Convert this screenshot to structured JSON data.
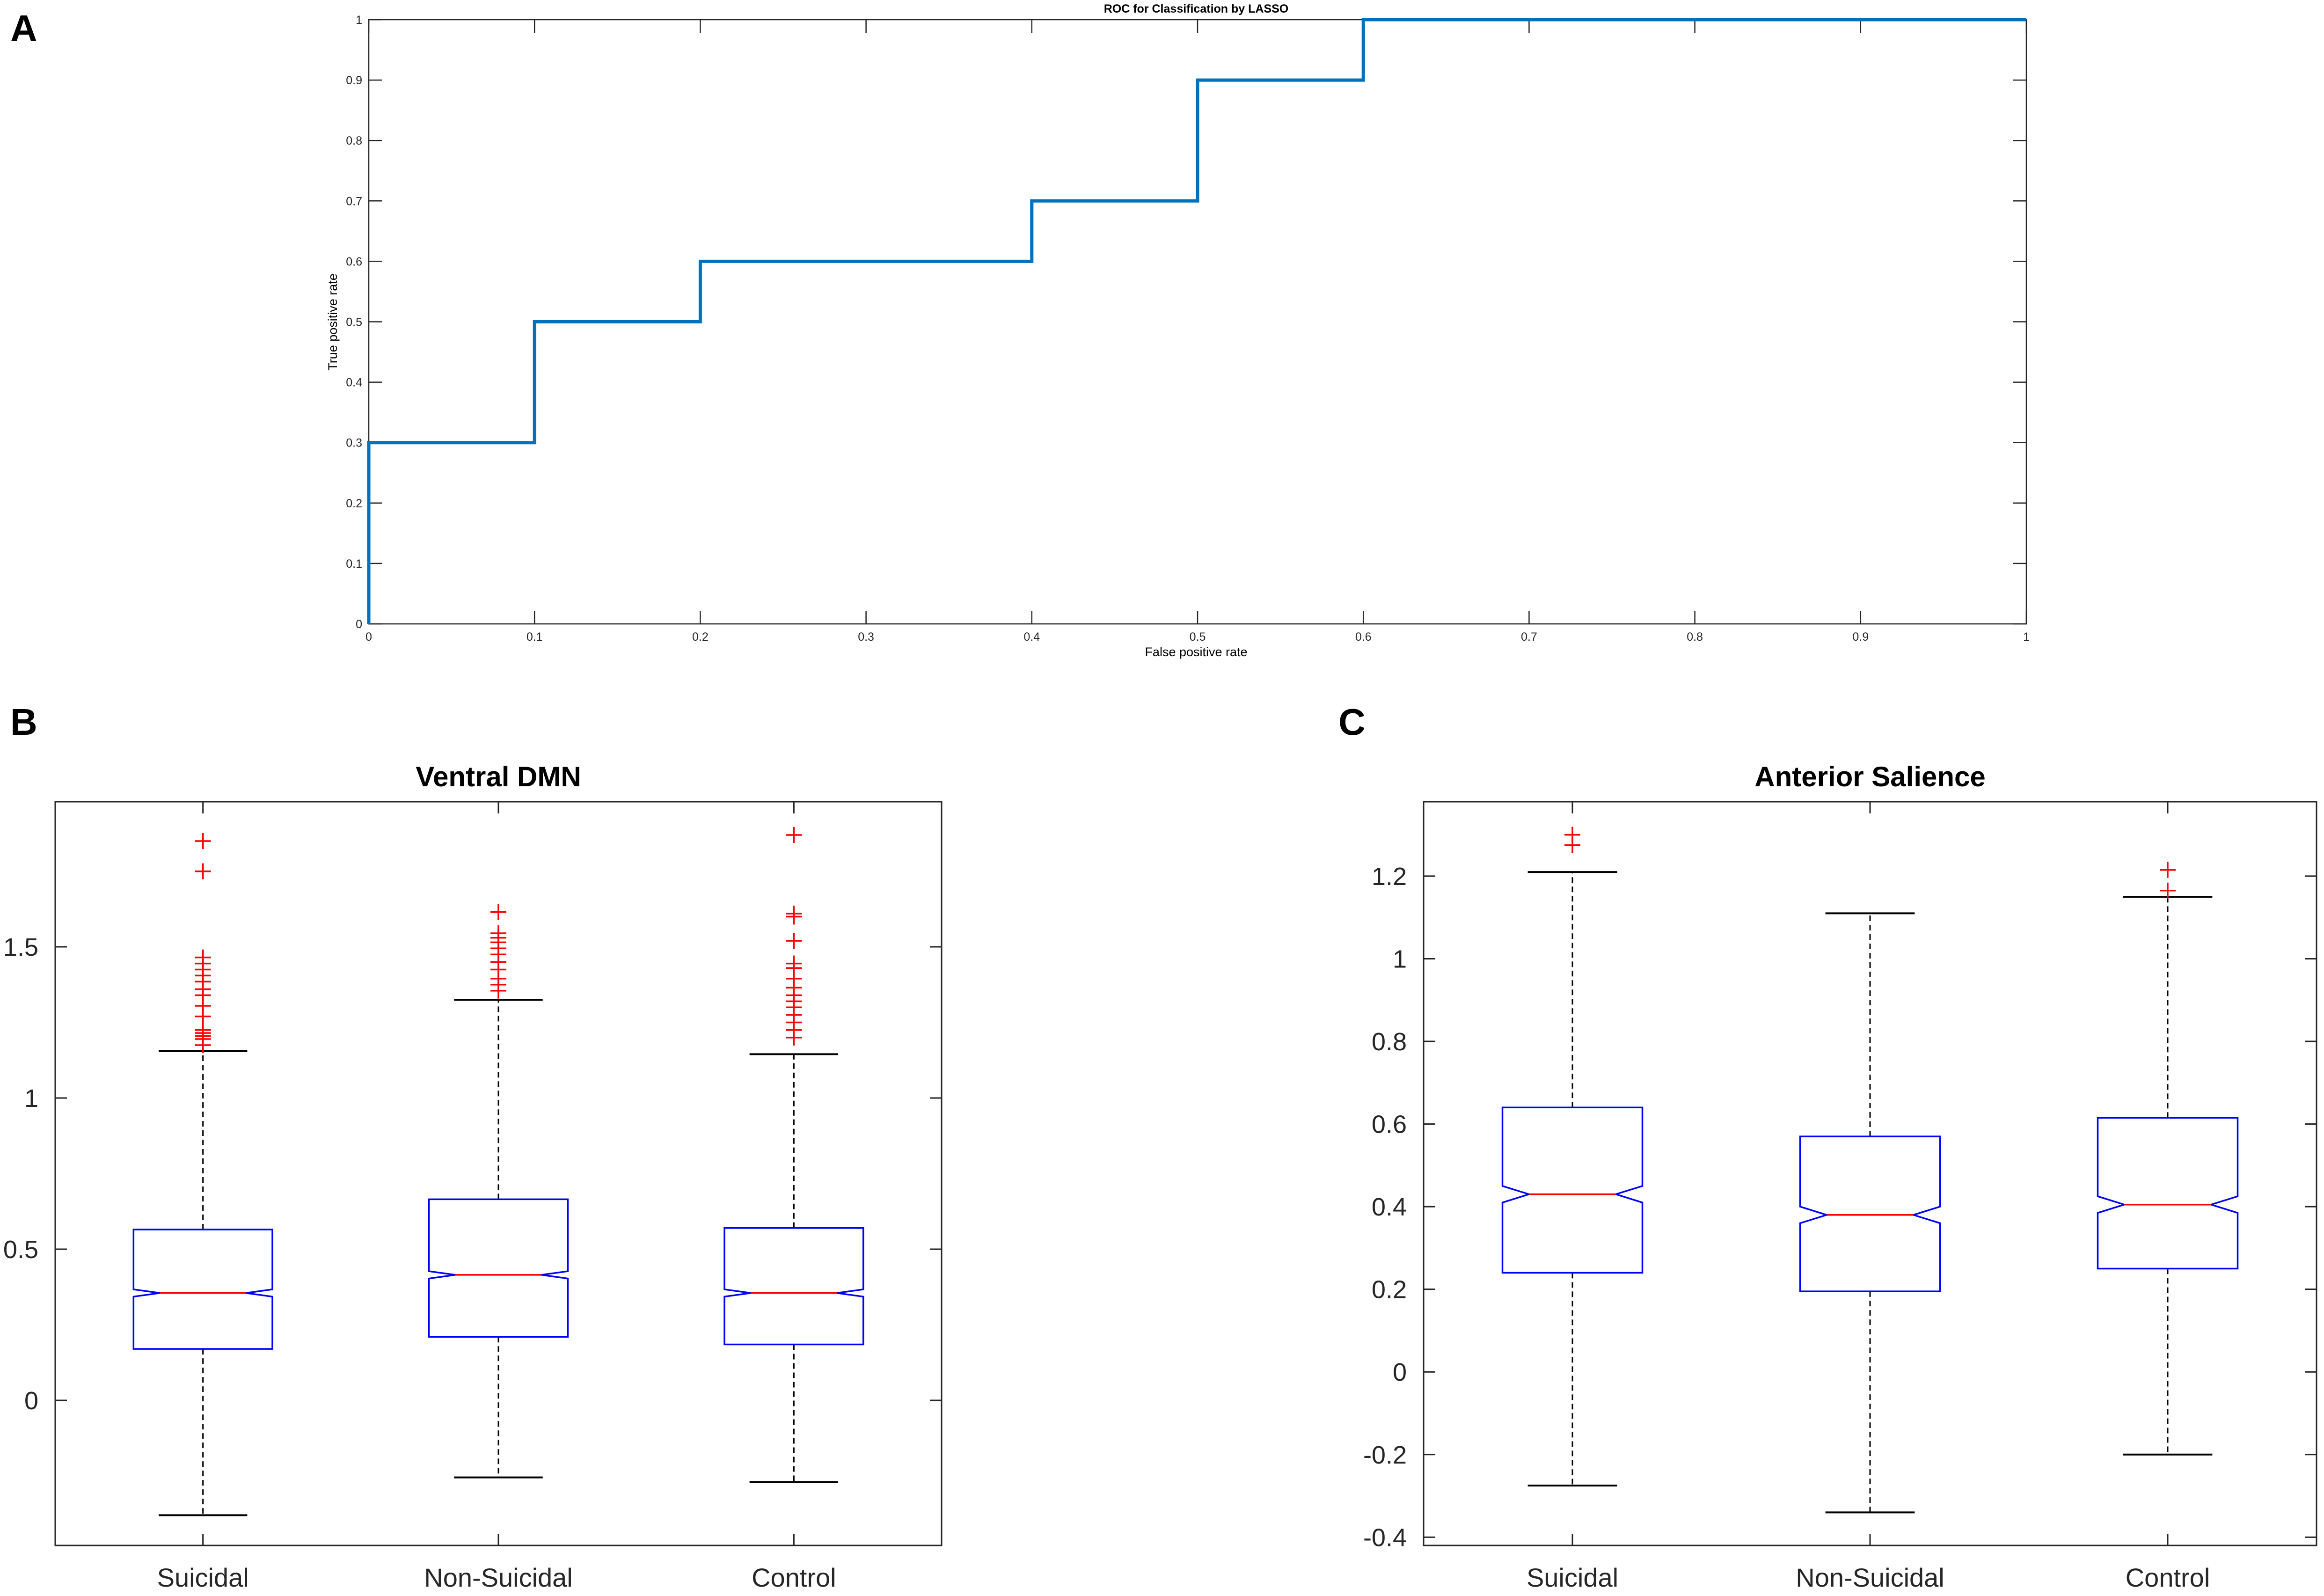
{
  "panels": {
    "a": {
      "letter": "A"
    },
    "b": {
      "letter": "B"
    },
    "c": {
      "letter": "C"
    }
  },
  "chart_data": [
    {
      "type": "line",
      "title": "ROC for Classification by LASSO",
      "xlabel": "False positive rate",
      "ylabel": "True positive rate",
      "xlim": [
        0,
        1
      ],
      "ylim": [
        0,
        1
      ],
      "xticks": [
        0,
        0.1,
        0.2,
        0.3,
        0.4,
        0.5,
        0.6,
        0.7,
        0.8,
        0.9,
        1
      ],
      "yticks": [
        0,
        0.1,
        0.2,
        0.3,
        0.4,
        0.5,
        0.6,
        0.7,
        0.8,
        0.9,
        1
      ],
      "xtick_labels": [
        "0",
        "0.1",
        "0.2",
        "0.3",
        "0.4",
        "0.5",
        "0.6",
        "0.7",
        "0.8",
        "0.9",
        "1"
      ],
      "ytick_labels": [
        "0",
        "0.1",
        "0.2",
        "0.3",
        "0.4",
        "0.5",
        "0.6",
        "0.7",
        "0.8",
        "0.9",
        "1"
      ],
      "grid": false,
      "series": [
        {
          "name": "ROC",
          "color": "#0072bd",
          "step": true,
          "x": [
            0,
            0,
            0.1,
            0.1,
            0.2,
            0.2,
            0.4,
            0.4,
            0.5,
            0.5,
            0.6,
            0.6,
            1
          ],
          "y": [
            0,
            0.3,
            0.3,
            0.5,
            0.5,
            0.6,
            0.6,
            0.7,
            0.7,
            0.9,
            0.9,
            1,
            1
          ]
        }
      ]
    },
    {
      "type": "box",
      "title": "Ventral DMN",
      "xlabel": "",
      "ylabel": "",
      "ylim": [
        -0.48,
        1.98
      ],
      "yticks": [
        0,
        0.5,
        1,
        1.5
      ],
      "ytick_labels": [
        "0",
        "0.5",
        "1",
        "1.5"
      ],
      "categories": [
        "Suicidal",
        "Non-Suicidal",
        "Control"
      ],
      "box_color": "#0000ff",
      "median_color": "#ff0000",
      "whisker_color": "#000000",
      "outlier_color": "#ff0000",
      "boxes": [
        {
          "q1": 0.17,
          "median": 0.355,
          "q3": 0.565,
          "notch_low": 0.343,
          "notch_high": 0.367,
          "whisker_low": -0.38,
          "whisker_high": 1.155,
          "outliers": [
            1.85,
            1.75,
            1.465,
            1.445,
            1.425,
            1.405,
            1.385,
            1.36,
            1.34,
            1.305,
            1.27,
            1.225,
            1.215,
            1.205,
            1.195,
            1.175
          ]
        },
        {
          "q1": 0.21,
          "median": 0.415,
          "q3": 0.665,
          "notch_low": 0.403,
          "notch_high": 0.427,
          "whisker_low": -0.255,
          "whisker_high": 1.325,
          "outliers": [
            1.615,
            1.545,
            1.53,
            1.515,
            1.495,
            1.475,
            1.45,
            1.425,
            1.395,
            1.375,
            1.355
          ]
        },
        {
          "q1": 0.185,
          "median": 0.355,
          "q3": 0.57,
          "notch_low": 0.343,
          "notch_high": 0.367,
          "whisker_low": -0.27,
          "whisker_high": 1.145,
          "outliers": [
            1.87,
            1.61,
            1.6,
            1.52,
            1.445,
            1.43,
            1.395,
            1.365,
            1.34,
            1.32,
            1.3,
            1.275,
            1.25,
            1.225,
            1.2
          ]
        }
      ]
    },
    {
      "type": "box",
      "title": "Anterior Salience",
      "xlabel": "",
      "ylabel": "",
      "ylim": [
        -0.42,
        1.38
      ],
      "yticks": [
        -0.4,
        -0.2,
        0,
        0.2,
        0.4,
        0.6,
        0.8,
        1,
        1.2
      ],
      "ytick_labels": [
        "-0.4",
        "-0.2",
        "0",
        "0.2",
        "0.4",
        "0.6",
        "0.8",
        "1",
        "1.2"
      ],
      "categories": [
        "Suicidal",
        "Non-Suicidal",
        "Control"
      ],
      "box_color": "#0000ff",
      "median_color": "#ff0000",
      "whisker_color": "#000000",
      "outlier_color": "#ff0000",
      "boxes": [
        {
          "q1": 0.24,
          "median": 0.43,
          "q3": 0.64,
          "notch_low": 0.41,
          "notch_high": 0.45,
          "whisker_low": -0.275,
          "whisker_high": 1.21,
          "outliers": [
            1.3,
            1.275
          ]
        },
        {
          "q1": 0.195,
          "median": 0.38,
          "q3": 0.57,
          "notch_low": 0.36,
          "notch_high": 0.4,
          "whisker_low": -0.34,
          "whisker_high": 1.11,
          "outliers": []
        },
        {
          "q1": 0.25,
          "median": 0.405,
          "q3": 0.615,
          "notch_low": 0.385,
          "notch_high": 0.425,
          "whisker_low": -0.2,
          "whisker_high": 1.15,
          "outliers": [
            1.215,
            1.165
          ]
        }
      ]
    }
  ]
}
